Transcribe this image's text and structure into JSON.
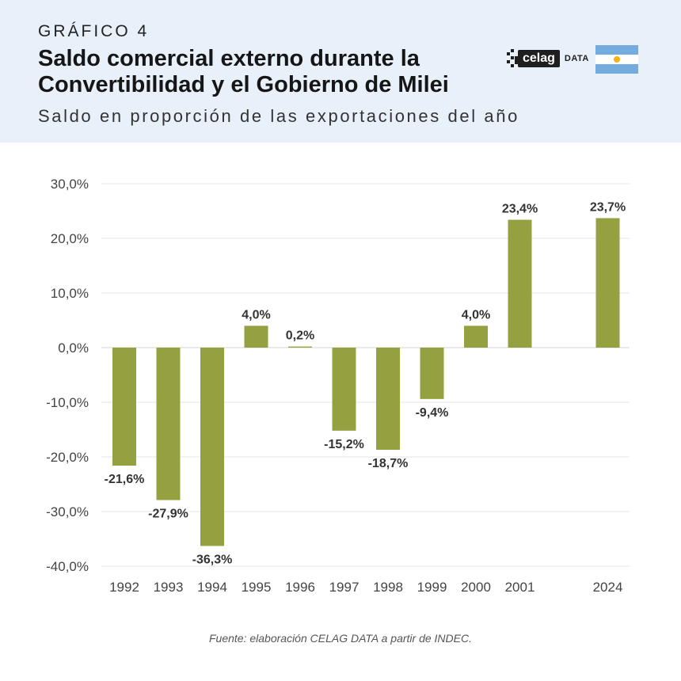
{
  "header": {
    "kicker": "GRÁFICO 4",
    "title": "Saldo comercial externo durante la Convertibilidad y el Gobierno de Milei",
    "subtitle": "Saldo en proporción de las exportaciones del año"
  },
  "logo": {
    "word": "celag",
    "suffix": "DATA"
  },
  "flag": {
    "name": "argentina-flag"
  },
  "colors": {
    "bar": "#95a040",
    "grid": "#e4e4e4",
    "label": "#333333",
    "tick": "#444444"
  },
  "chart_data": {
    "type": "bar",
    "title": "Saldo comercial externo durante la Convertibilidad y el Gobierno de Milei",
    "subtitle": "Saldo en proporción de las exportaciones del año",
    "xlabel": "",
    "ylabel": "",
    "ylim": [
      -40,
      30
    ],
    "yticks": [
      30,
      20,
      10,
      0,
      -10,
      -20,
      -30,
      -40
    ],
    "ytick_labels": [
      "30,0%",
      "20,0%",
      "10,0%",
      "0,0%",
      "-10,0%",
      "-20,0%",
      "-30,0%",
      "-40,0%"
    ],
    "grid": true,
    "categories": [
      "1992",
      "1993",
      "1994",
      "1995",
      "1996",
      "1997",
      "1998",
      "1999",
      "2000",
      "2001",
      "2024"
    ],
    "values": [
      -21.6,
      -27.9,
      -36.3,
      4.0,
      0.2,
      -15.2,
      -18.7,
      -9.4,
      4.0,
      23.4,
      23.7
    ],
    "data_labels": [
      "-21,6%",
      "-27,9%",
      "-36,3%",
      "4,0%",
      "0,2%",
      "-15,2%",
      "-18,7%",
      "-9,4%",
      "4,0%",
      "23,4%",
      "23,7%"
    ],
    "category_gap_after": "2001"
  },
  "footer": {
    "source": "Fuente: elaboración CELAG DATA a partir de INDEC."
  }
}
